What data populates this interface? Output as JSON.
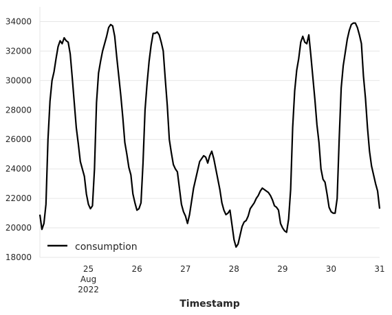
{
  "chart_data": {
    "type": "line",
    "title": "",
    "xlabel": "Timestamp",
    "ylabel": "",
    "legend": {
      "placement": "lower-left",
      "entries": [
        "consumption"
      ]
    },
    "grid": "horizontal",
    "ylim": [
      18000,
      35000
    ],
    "xlim": [
      "2022-08-24 00:00",
      "2022-08-31 00:00"
    ],
    "x_ticks": [
      {
        "value": "2022-08-25",
        "lines": [
          "25",
          "Aug",
          "2022"
        ]
      },
      {
        "value": "2022-08-26",
        "lines": [
          "26"
        ]
      },
      {
        "value": "2022-08-27",
        "lines": [
          "27"
        ]
      },
      {
        "value": "2022-08-28",
        "lines": [
          "28"
        ]
      },
      {
        "value": "2022-08-29",
        "lines": [
          "29"
        ]
      },
      {
        "value": "2022-08-30",
        "lines": [
          "30"
        ]
      },
      {
        "value": "2022-08-31",
        "lines": [
          "31"
        ]
      }
    ],
    "y_ticks": [
      18000,
      20000,
      22000,
      24000,
      26000,
      28000,
      30000,
      32000,
      34000
    ],
    "series": [
      {
        "name": "consumption",
        "color": "#000000",
        "x": [
          "2022-08-24 00:00",
          "2022-08-24 01:00",
          "2022-08-24 02:00",
          "2022-08-24 03:00",
          "2022-08-24 04:00",
          "2022-08-24 05:00",
          "2022-08-24 06:00",
          "2022-08-24 07:00",
          "2022-08-24 08:00",
          "2022-08-24 09:00",
          "2022-08-24 10:00",
          "2022-08-24 11:00",
          "2022-08-24 12:00",
          "2022-08-24 13:00",
          "2022-08-24 14:00",
          "2022-08-24 15:00",
          "2022-08-24 16:00",
          "2022-08-24 17:00",
          "2022-08-24 18:00",
          "2022-08-24 19:00",
          "2022-08-24 20:00",
          "2022-08-24 21:00",
          "2022-08-24 22:00",
          "2022-08-24 23:00",
          "2022-08-25 00:00",
          "2022-08-25 01:00",
          "2022-08-25 02:00",
          "2022-08-25 03:00",
          "2022-08-25 04:00",
          "2022-08-25 05:00",
          "2022-08-25 06:00",
          "2022-08-25 07:00",
          "2022-08-25 08:00",
          "2022-08-25 09:00",
          "2022-08-25 10:00",
          "2022-08-25 11:00",
          "2022-08-25 12:00",
          "2022-08-25 13:00",
          "2022-08-25 14:00",
          "2022-08-25 15:00",
          "2022-08-25 16:00",
          "2022-08-25 17:00",
          "2022-08-25 18:00",
          "2022-08-25 19:00",
          "2022-08-25 20:00",
          "2022-08-25 21:00",
          "2022-08-25 22:00",
          "2022-08-25 23:00",
          "2022-08-26 00:00",
          "2022-08-26 01:00",
          "2022-08-26 02:00",
          "2022-08-26 03:00",
          "2022-08-26 04:00",
          "2022-08-26 05:00",
          "2022-08-26 06:00",
          "2022-08-26 07:00",
          "2022-08-26 08:00",
          "2022-08-26 09:00",
          "2022-08-26 10:00",
          "2022-08-26 11:00",
          "2022-08-26 12:00",
          "2022-08-26 13:00",
          "2022-08-26 14:00",
          "2022-08-26 15:00",
          "2022-08-26 16:00",
          "2022-08-26 17:00",
          "2022-08-26 18:00",
          "2022-08-26 19:00",
          "2022-08-26 20:00",
          "2022-08-26 21:00",
          "2022-08-26 22:00",
          "2022-08-26 23:00",
          "2022-08-27 00:00",
          "2022-08-27 01:00",
          "2022-08-27 02:00",
          "2022-08-27 03:00",
          "2022-08-27 04:00",
          "2022-08-27 05:00",
          "2022-08-27 06:00",
          "2022-08-27 07:00",
          "2022-08-27 08:00",
          "2022-08-27 09:00",
          "2022-08-27 10:00",
          "2022-08-27 11:00",
          "2022-08-27 12:00",
          "2022-08-27 13:00",
          "2022-08-27 14:00",
          "2022-08-27 15:00",
          "2022-08-27 16:00",
          "2022-08-27 17:00",
          "2022-08-27 18:00",
          "2022-08-27 19:00",
          "2022-08-27 20:00",
          "2022-08-27 21:00",
          "2022-08-27 22:00",
          "2022-08-27 23:00",
          "2022-08-28 00:00",
          "2022-08-28 01:00",
          "2022-08-28 02:00",
          "2022-08-28 03:00",
          "2022-08-28 04:00",
          "2022-08-28 05:00",
          "2022-08-28 06:00",
          "2022-08-28 07:00",
          "2022-08-28 08:00",
          "2022-08-28 09:00",
          "2022-08-28 10:00",
          "2022-08-28 11:00",
          "2022-08-28 12:00",
          "2022-08-28 13:00",
          "2022-08-28 14:00",
          "2022-08-28 15:00",
          "2022-08-28 16:00",
          "2022-08-28 17:00",
          "2022-08-28 18:00",
          "2022-08-28 19:00",
          "2022-08-28 20:00",
          "2022-08-28 21:00",
          "2022-08-28 22:00",
          "2022-08-28 23:00",
          "2022-08-29 00:00",
          "2022-08-29 01:00",
          "2022-08-29 02:00",
          "2022-08-29 03:00",
          "2022-08-29 04:00",
          "2022-08-29 05:00",
          "2022-08-29 06:00",
          "2022-08-29 07:00",
          "2022-08-29 08:00",
          "2022-08-29 09:00",
          "2022-08-29 10:00",
          "2022-08-29 11:00",
          "2022-08-29 12:00",
          "2022-08-29 13:00",
          "2022-08-29 14:00",
          "2022-08-29 15:00",
          "2022-08-29 16:00",
          "2022-08-29 17:00",
          "2022-08-29 18:00",
          "2022-08-29 19:00",
          "2022-08-29 20:00",
          "2022-08-29 21:00",
          "2022-08-29 22:00",
          "2022-08-29 23:00",
          "2022-08-30 00:00",
          "2022-08-30 01:00",
          "2022-08-30 02:00",
          "2022-08-30 03:00",
          "2022-08-30 04:00",
          "2022-08-30 05:00",
          "2022-08-30 06:00",
          "2022-08-30 07:00",
          "2022-08-30 08:00",
          "2022-08-30 09:00",
          "2022-08-30 10:00",
          "2022-08-30 11:00",
          "2022-08-30 12:00",
          "2022-08-30 13:00",
          "2022-08-30 14:00",
          "2022-08-30 15:00",
          "2022-08-30 16:00",
          "2022-08-30 17:00",
          "2022-08-30 18:00",
          "2022-08-30 19:00",
          "2022-08-30 20:00",
          "2022-08-30 21:00",
          "2022-08-30 22:00",
          "2022-08-30 23:00",
          "2022-08-31 00:00"
        ],
        "values": [
          20900,
          19900,
          20300,
          21600,
          26000,
          28600,
          30000,
          30600,
          31500,
          32300,
          32700,
          32500,
          32900,
          32700,
          32600,
          31800,
          30200,
          28500,
          26800,
          25700,
          24500,
          24000,
          23500,
          22300,
          21600,
          21300,
          21500,
          24000,
          28500,
          30500,
          31300,
          32000,
          32500,
          33000,
          33600,
          33800,
          33700,
          33000,
          31600,
          30300,
          29000,
          27500,
          25800,
          25000,
          24100,
          23600,
          22300,
          21700,
          21200,
          21300,
          21700,
          24400,
          28000,
          29800,
          31300,
          32400,
          33200,
          33200,
          33300,
          33100,
          32600,
          32000,
          30100,
          28300,
          26000,
          25100,
          24300,
          24000,
          23800,
          22700,
          21600,
          21100,
          20800,
          20300,
          20900,
          21800,
          22700,
          23300,
          23900,
          24500,
          24700,
          24900,
          24800,
          24400,
          24900,
          25200,
          24700,
          24000,
          23300,
          22600,
          21700,
          21200,
          20900,
          21000,
          21200,
          20200,
          19200,
          18700,
          18900,
          19500,
          20100,
          20400,
          20500,
          20800,
          21300,
          21500,
          21700,
          22000,
          22200,
          22500,
          22700,
          22600,
          22500,
          22400,
          22200,
          21900,
          21500,
          21400,
          21200,
          20300,
          20000,
          19800,
          19700,
          20600,
          22600,
          26800,
          29300,
          30700,
          31500,
          32600,
          33000,
          32600,
          32500,
          33100,
          31700,
          30200,
          28700,
          27000,
          25800,
          24000,
          23300,
          23100,
          22300,
          21400,
          21100,
          21000,
          21000,
          22000,
          26000,
          29500,
          31000,
          31900,
          32800,
          33400,
          33800,
          33900,
          33900,
          33600,
          33100,
          32500,
          30300,
          28800,
          26800,
          25200,
          24200,
          23600,
          23000,
          22500,
          21300
        ]
      }
    ]
  }
}
